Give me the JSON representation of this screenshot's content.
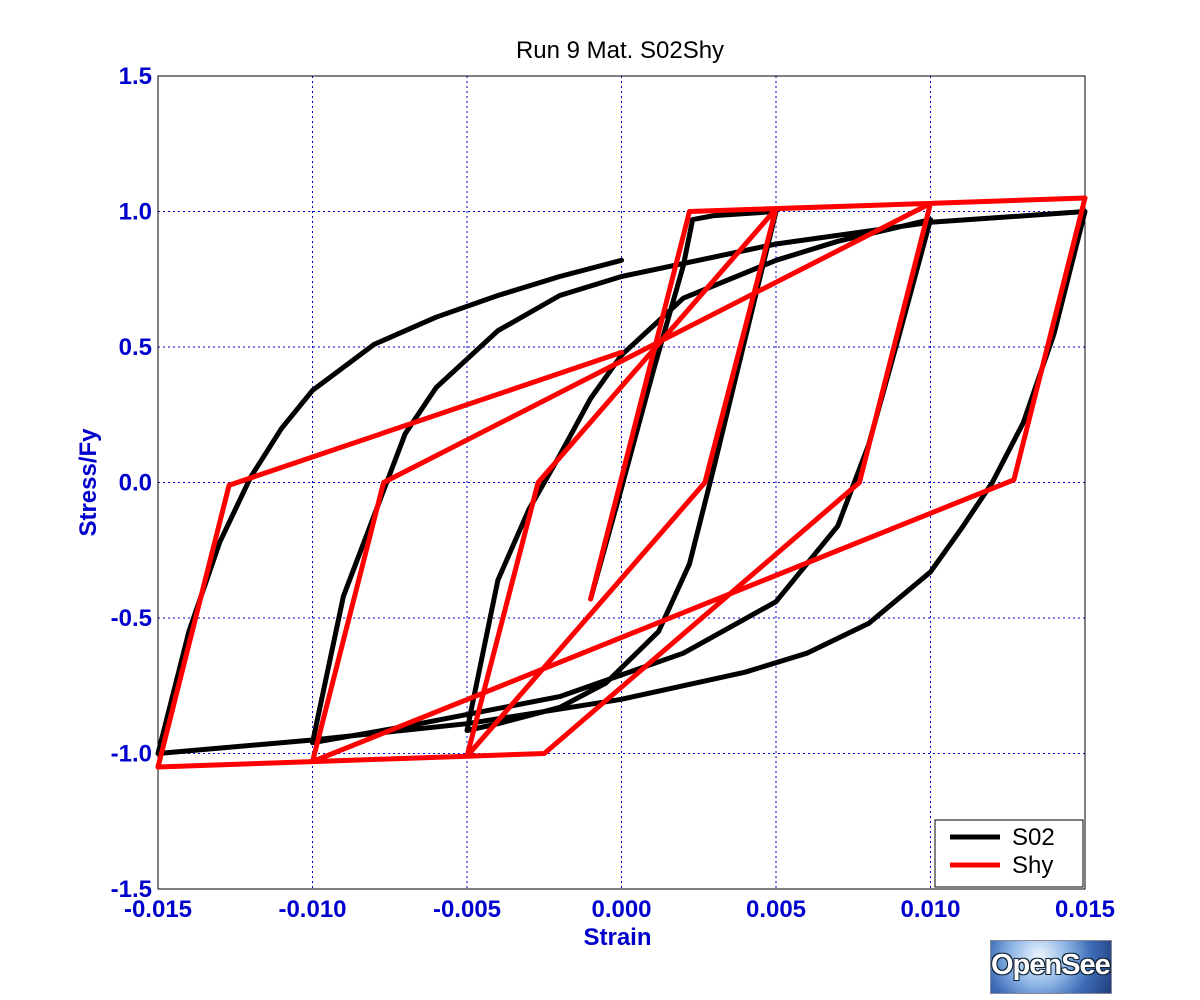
{
  "chart_data": {
    "type": "line",
    "title": "Run 9   Mat. S02Shy",
    "xlabel": "Strain",
    "ylabel": "Stress/Fy",
    "xlim": [
      -0.015,
      0.015
    ],
    "ylim": [
      -1.5,
      1.5
    ],
    "x_ticks": [
      -0.015,
      -0.01,
      -0.005,
      0.0,
      0.005,
      0.01,
      0.015
    ],
    "x_tick_labels": [
      "-0.015",
      "-0.010",
      "-0.005",
      "0.000",
      "0.005",
      "0.010",
      "0.015"
    ],
    "y_ticks": [
      1.5,
      1.0,
      0.5,
      0.0,
      -0.5,
      -1.0,
      -1.5
    ],
    "y_tick_labels": [
      "1.5",
      "1.0",
      "0.5",
      "0.0",
      "-0.5",
      "-1.0",
      "-1.5"
    ],
    "grid": true,
    "legend_position": "bottom-right",
    "series": [
      {
        "name": "S02",
        "color": "#000000",
        "points": [
          [
            -0.001,
            -0.43
          ],
          [
            0.0,
            -0.02
          ],
          [
            0.001,
            0.4
          ],
          [
            0.002,
            0.8
          ],
          [
            0.0023,
            0.97
          ],
          [
            0.003,
            0.985
          ],
          [
            0.005,
            1.0
          ],
          [
            0.003,
            0.06
          ],
          [
            0.0022,
            -0.3
          ],
          [
            0.0012,
            -0.55
          ],
          [
            -0.0005,
            -0.74
          ],
          [
            -0.002,
            -0.83
          ],
          [
            -0.004,
            -0.89
          ],
          [
            -0.005,
            -0.915
          ],
          [
            -0.004,
            -0.36
          ],
          [
            -0.003,
            -0.1
          ],
          [
            -0.002,
            0.1
          ],
          [
            -0.001,
            0.31
          ],
          [
            0.0,
            0.47
          ],
          [
            0.002,
            0.68
          ],
          [
            0.005,
            0.82
          ],
          [
            0.007,
            0.89
          ],
          [
            0.01,
            0.97
          ],
          [
            0.009,
            0.55
          ],
          [
            0.008,
            0.14
          ],
          [
            0.007,
            -0.16
          ],
          [
            0.005,
            -0.44
          ],
          [
            0.002,
            -0.63
          ],
          [
            -0.002,
            -0.79
          ],
          [
            -0.007,
            -0.9
          ],
          [
            -0.01,
            -0.96
          ],
          [
            -0.009,
            -0.42
          ],
          [
            -0.008,
            -0.12
          ],
          [
            -0.007,
            0.18
          ],
          [
            -0.006,
            0.35
          ],
          [
            -0.004,
            0.56
          ],
          [
            -0.002,
            0.69
          ],
          [
            0.0,
            0.76
          ],
          [
            0.005,
            0.88
          ],
          [
            0.01,
            0.96
          ],
          [
            0.015,
            1.0
          ],
          [
            0.014,
            0.55
          ],
          [
            0.013,
            0.22
          ],
          [
            0.012,
            0.0
          ],
          [
            0.011,
            -0.17
          ],
          [
            0.01,
            -0.33
          ],
          [
            0.008,
            -0.52
          ],
          [
            0.006,
            -0.63
          ],
          [
            0.004,
            -0.7
          ],
          [
            0.0,
            -0.8
          ],
          [
            -0.005,
            -0.89
          ],
          [
            -0.01,
            -0.95
          ],
          [
            -0.015,
            -1.0
          ],
          [
            -0.014,
            -0.55
          ],
          [
            -0.013,
            -0.22
          ],
          [
            -0.012,
            0.02
          ],
          [
            -0.011,
            0.2
          ],
          [
            -0.01,
            0.34
          ],
          [
            -0.008,
            0.51
          ],
          [
            -0.006,
            0.61
          ],
          [
            -0.004,
            0.69
          ],
          [
            -0.002,
            0.76
          ],
          [
            0.0,
            0.82
          ]
        ]
      },
      {
        "name": "Shy",
        "color": "#ff0000",
        "points": [
          [
            -0.001,
            -0.43
          ],
          [
            0.0022,
            1.0
          ],
          [
            0.01,
            1.03
          ],
          [
            0.0077,
            0.0
          ],
          [
            -0.0025,
            -1.0
          ],
          [
            -0.005,
            -1.01
          ],
          [
            -0.0027,
            0.0
          ],
          [
            0.005,
            1.01
          ],
          [
            0.0027,
            0.0
          ],
          [
            -0.005,
            -1.01
          ],
          [
            -0.01,
            -1.03
          ],
          [
            -0.0077,
            0.0
          ],
          [
            0.01,
            1.03
          ],
          [
            0.015,
            1.05
          ],
          [
            0.0127,
            0.01
          ],
          [
            -0.01,
            -1.03
          ],
          [
            -0.015,
            -1.05
          ],
          [
            -0.0127,
            -0.01
          ],
          [
            0.0,
            0.48
          ]
        ]
      }
    ]
  },
  "legend": {
    "items": [
      {
        "label": "S02",
        "color": "#000000"
      },
      {
        "label": "Shy",
        "color": "#ff0000"
      }
    ]
  },
  "logo": {
    "text": "OpenSees"
  }
}
